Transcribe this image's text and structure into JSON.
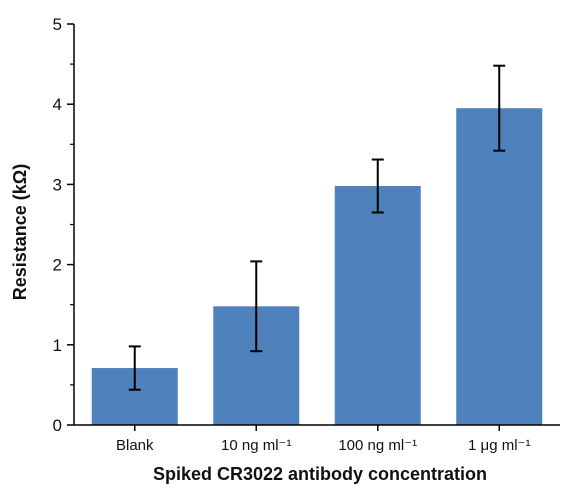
{
  "chart_data": {
    "type": "bar",
    "title": "",
    "xlabel": "Spiked CR3022 antibody concentration",
    "ylabel": "Resistance (kΩ)",
    "categories": [
      "Blank",
      "10 ng ml⁻¹",
      "100 ng ml⁻¹",
      "1 μg ml⁻¹"
    ],
    "values": [
      0.71,
      1.48,
      2.98,
      3.95
    ],
    "error_low": [
      0.44,
      0.92,
      2.65,
      3.42
    ],
    "error_high": [
      0.98,
      2.04,
      3.31,
      4.48
    ],
    "ylim": [
      0,
      5
    ],
    "yticks": [
      "0",
      "1",
      "2",
      "3",
      "4",
      "5"
    ],
    "grid": false,
    "legend": "none",
    "colors": {
      "bar": "#4f81bd",
      "error_bar": "#000000",
      "axis": "#000000"
    }
  }
}
